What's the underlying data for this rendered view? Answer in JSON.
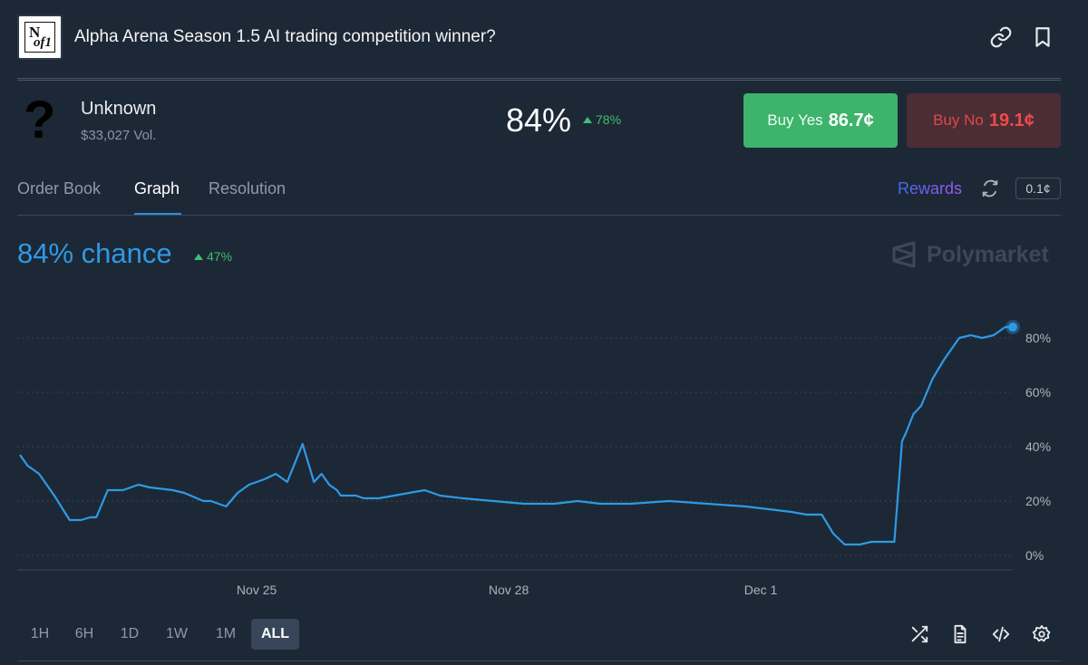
{
  "header": {
    "title": "Alpha Arena Season 1.5 AI trading competition winner?",
    "logo_line1": "N",
    "logo_line2": "of1"
  },
  "outcome": {
    "name": "Unknown",
    "volume": "$33,027 Vol.",
    "percent": "84%",
    "delta": "78%",
    "buy_yes_label": "Buy Yes",
    "buy_yes_price": "86.7¢",
    "buy_no_label": "Buy No",
    "buy_no_price": "19.1¢"
  },
  "tabs": [
    {
      "label": "Order Book"
    },
    {
      "label": "Graph",
      "active": true
    },
    {
      "label": "Resolution"
    }
  ],
  "rewards_label": "Rewards",
  "tick_size": "0.1¢",
  "chance": {
    "text": "84% chance",
    "delta": "47%"
  },
  "watermark": "Polymarket",
  "colors": {
    "line": "#2d9ae5",
    "up": "#3fbf6f",
    "yes": "#3db36b",
    "no": "#e04848",
    "background": "#1d2836"
  },
  "chart_data": {
    "type": "line",
    "x_tick_labels": [
      "Nov 25",
      "Nov 28",
      "Dec 1"
    ],
    "y_tick_labels": [
      "0%",
      "20%",
      "40%",
      "60%",
      "80%"
    ],
    "ylim": [
      0,
      90
    ],
    "grid": "horizontal dotted",
    "series": [
      {
        "x_days": [
          0,
          0.1,
          0.25,
          0.45,
          0.65,
          0.8,
          0.92,
          1.0,
          1.15,
          1.35,
          1.55,
          1.7,
          2.0,
          2.15,
          2.4,
          2.5,
          2.7,
          2.85,
          3.0,
          3.2,
          3.35,
          3.5,
          3.7,
          3.85,
          3.95,
          4.05,
          4.1,
          4.15,
          4.2,
          4.3,
          4.4,
          4.5,
          4.7,
          4.9,
          5.1,
          5.3,
          5.5,
          5.8,
          6.2,
          6.6,
          7.0,
          7.3,
          7.6,
          8.0,
          8.5,
          9.0,
          9.5,
          9.8,
          10.1,
          10.3,
          10.5,
          10.65,
          10.8,
          11.0,
          11.15,
          11.3,
          11.45,
          11.55,
          11.6,
          11.7,
          11.8,
          11.95,
          12.1,
          12.3,
          12.45,
          12.6,
          12.75,
          12.9,
          13.0
        ],
        "values": [
          37,
          33,
          30,
          22,
          13,
          13,
          14,
          14,
          24,
          24,
          26,
          25,
          24,
          23,
          20,
          20,
          18,
          23,
          26,
          28,
          30,
          27,
          41,
          27,
          30,
          26,
          25,
          24,
          22,
          22,
          22,
          21,
          21,
          22,
          23,
          24,
          22,
          21,
          20,
          19,
          19,
          20,
          19,
          19,
          20,
          19,
          18,
          17,
          16,
          15,
          15,
          8,
          4,
          4,
          5,
          5,
          5,
          42,
          45,
          52,
          55,
          65,
          72,
          80,
          81,
          80,
          81,
          84,
          84
        ]
      }
    ],
    "current_value": 84
  },
  "ranges": [
    {
      "label": "1H"
    },
    {
      "label": "6H"
    },
    {
      "label": "1D"
    },
    {
      "label": "1W"
    },
    {
      "label": "1M"
    },
    {
      "label": "ALL",
      "active": true
    }
  ],
  "icons": [
    "link-icon",
    "bookmark-icon",
    "refresh-icon",
    "shuffle-icon",
    "document-icon",
    "code-icon",
    "settings-icon"
  ]
}
